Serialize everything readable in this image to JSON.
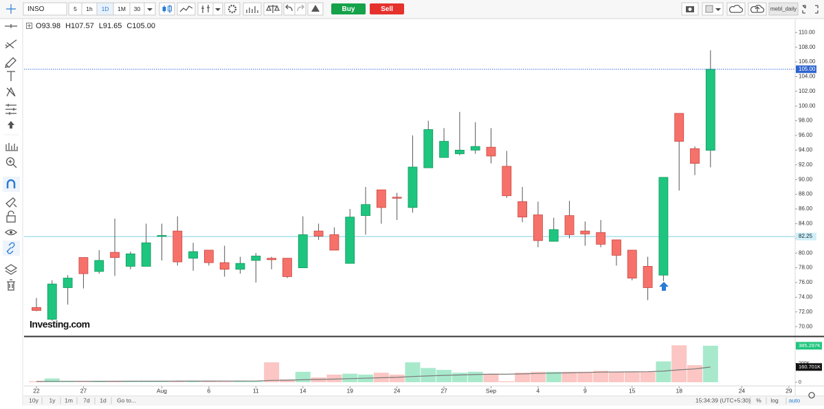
{
  "toolbar": {
    "symbol": "INSO",
    "intervals": [
      "5",
      "1h",
      "1D",
      "1M",
      "30"
    ],
    "active_interval": 2,
    "buy": "Buy",
    "sell": "Sell",
    "layout_name": "mebl_daily"
  },
  "chart_data": [
    {
      "type": "candlestick",
      "legend": {
        "labels": [
          "O",
          "H",
          "L",
          "C"
        ],
        "values": [
          93.98,
          107.57,
          91.65,
          105.0
        ],
        "value_labels": [
          "93.98",
          "107.57",
          "91.65",
          "105.00"
        ]
      },
      "watermark": "Investing.com",
      "categories": [
        "22",
        null,
        null,
        "27",
        null,
        null,
        null,
        null,
        "Aug",
        null,
        null,
        "6",
        null,
        null,
        "11",
        null,
        null,
        "14",
        null,
        null,
        "19",
        null,
        null,
        "24",
        null,
        null,
        "27",
        null,
        null,
        "Sep",
        null,
        null,
        "4",
        null,
        null,
        "9",
        null,
        null,
        "15",
        null,
        null,
        "18",
        null,
        null,
        null,
        "24",
        null,
        null,
        "29"
      ],
      "open": [
        72.6,
        71.0,
        75.3,
        79.4,
        77.5,
        80.1,
        78.2,
        78.2,
        82.3,
        83.0,
        79.3,
        80.4,
        78.7,
        77.8,
        79.0,
        79.3,
        79.3,
        78.0,
        83.0,
        82.5,
        78.6,
        85.1,
        88.6,
        87.6,
        86.2,
        91.6,
        93.0,
        93.5,
        94.0,
        94.4,
        91.8,
        87.0,
        85.2,
        81.6,
        85.1,
        83.0,
        82.8,
        81.8,
        80.4,
        78.2,
        77.0,
        99.0,
        94.2,
        93.98,
        null,
        null,
        null,
        null,
        null
      ],
      "high": [
        73.9,
        76.3,
        77.0,
        79.4,
        80.4,
        84.7,
        80.2,
        84.0,
        84.0,
        85.0,
        81.4,
        80.4,
        81.0,
        79.5,
        80.0,
        79.5,
        79.3,
        85.0,
        84.0,
        83.5,
        86.0,
        89.0,
        88.6,
        88.2,
        96.0,
        98.0,
        97.0,
        99.2,
        97.8,
        97.0,
        93.9,
        89.0,
        87.0,
        84.8,
        87.1,
        84.3,
        84.5,
        81.8,
        80.4,
        79.5,
        90.3,
        99.0,
        94.5,
        107.57,
        null,
        null,
        null,
        null,
        null
      ],
      "low": [
        72.1,
        70.8,
        73.0,
        75.2,
        77.2,
        76.9,
        77.8,
        78.2,
        79.0,
        78.3,
        77.6,
        78.3,
        76.8,
        77.2,
        76.0,
        77.8,
        76.6,
        78.0,
        81.8,
        80.4,
        78.6,
        82.5,
        84.0,
        84.5,
        85.5,
        91.6,
        93.0,
        93.3,
        93.5,
        92.2,
        87.5,
        84.2,
        80.8,
        81.6,
        82.0,
        81.0,
        80.8,
        78.3,
        76.3,
        73.6,
        76.2,
        88.5,
        90.6,
        91.65,
        null,
        null,
        null,
        null,
        null
      ],
      "close": [
        72.2,
        75.8,
        76.6,
        77.2,
        79.0,
        79.4,
        79.9,
        81.4,
        82.4,
        78.8,
        80.2,
        78.7,
        77.8,
        78.6,
        79.6,
        79.1,
        76.8,
        82.5,
        82.3,
        80.4,
        84.9,
        86.6,
        86.2,
        87.5,
        91.7,
        96.8,
        95.2,
        94.0,
        94.5,
        93.2,
        87.8,
        84.9,
        81.7,
        83.2,
        82.5,
        82.6,
        81.2,
        79.7,
        76.6,
        75.3,
        90.3,
        95.2,
        92.2,
        105.0,
        null,
        null,
        null,
        null,
        null
      ],
      "up_color": "#1ec57e",
      "down_color": "#f7716b",
      "wick_color": "#555555",
      "ylim": [
        68.8,
        111.8
      ],
      "yticks": [
        {
          "value": 70,
          "label": "70.00"
        },
        {
          "value": 72,
          "label": "72.00"
        },
        {
          "value": 74,
          "label": "74.00"
        },
        {
          "value": 76,
          "label": "76.00"
        },
        {
          "value": 78,
          "label": "78.00"
        },
        {
          "value": 80,
          "label": "80.00"
        },
        {
          "value": 82,
          "label": "82.00"
        },
        {
          "value": 84,
          "label": "84.00"
        },
        {
          "value": 86,
          "label": "86.00"
        },
        {
          "value": 88,
          "label": "88.00"
        },
        {
          "value": 90,
          "label": "90.00"
        },
        {
          "value": 92,
          "label": "92.00"
        },
        {
          "value": 94,
          "label": "94.00"
        },
        {
          "value": 96,
          "label": "96.00"
        },
        {
          "value": 98,
          "label": "98.00"
        },
        {
          "value": 100,
          "label": "100.00"
        },
        {
          "value": 102,
          "label": "102.00"
        },
        {
          "value": 104,
          "label": "104.00"
        },
        {
          "value": 106,
          "label": "106.00"
        },
        {
          "value": 108,
          "label": "108.00"
        },
        {
          "value": 110,
          "label": "110.00"
        }
      ],
      "last_price": {
        "value": 105,
        "label": "105.00"
      },
      "level_line": 82.25
    },
    {
      "type": "bar",
      "values": [
        10000,
        40000,
        12000,
        10000,
        12000,
        15000,
        10000,
        12000,
        8000,
        12000,
        8000,
        10000,
        8000,
        10000,
        8000,
        210000,
        30000,
        110000,
        50000,
        80000,
        90000,
        80000,
        100000,
        80000,
        210000,
        150000,
        130000,
        100000,
        110000,
        90000,
        10000,
        100000,
        110000,
        110000,
        110000,
        110000,
        120000,
        110000,
        110000,
        110000,
        220000,
        390000,
        180000,
        385297,
        null,
        null,
        null,
        null,
        null
      ],
      "value_labels": [
        null,
        null,
        null,
        null,
        null,
        null,
        null,
        null,
        null,
        null,
        null,
        null,
        null,
        null,
        null,
        null,
        null,
        null,
        null,
        null,
        null,
        null,
        null,
        null,
        null,
        null,
        null,
        null,
        null,
        null,
        null,
        null,
        null,
        null,
        null,
        null,
        null,
        null,
        null,
        null,
        null,
        null,
        null,
        "385.297K",
        null,
        null,
        null,
        null,
        null
      ],
      "ma": [
        8000,
        9000,
        9500,
        9800,
        10000,
        10500,
        10800,
        11000,
        11200,
        11500,
        11800,
        12000,
        12200,
        12400,
        12600,
        20000,
        21000,
        26000,
        29000,
        33000,
        38000,
        42000,
        47000,
        51000,
        60000,
        66000,
        72000,
        76000,
        81000,
        85000,
        84000,
        88000,
        92000,
        96000,
        99000,
        103000,
        107000,
        108000,
        110000,
        111000,
        117000,
        131000,
        140000,
        160701,
        null,
        null,
        null,
        null,
        null
      ],
      "ma_value_labels": [
        null,
        null,
        null,
        null,
        null,
        null,
        null,
        null,
        null,
        null,
        null,
        null,
        null,
        null,
        null,
        null,
        null,
        null,
        null,
        null,
        null,
        null,
        null,
        null,
        null,
        null,
        null,
        null,
        null,
        null,
        null,
        null,
        null,
        null,
        null,
        null,
        null,
        null,
        null,
        null,
        null,
        null,
        null,
        "160.701K",
        null,
        null,
        null,
        null,
        null
      ],
      "up_color": "#a8e9cc",
      "down_color": "#fbc6c3",
      "ma_color": "#7a7a7a",
      "ylim": [
        -29000,
        465000
      ],
      "yticks": [
        0,
        {
          "value": 200000,
          "label": "200K"
        }
      ]
    }
  ],
  "bottom_bar": {
    "ranges": [
      "10y",
      "1y",
      "1m",
      "7d",
      "1d",
      "Go to..."
    ],
    "time": "15:34:39 (UTC+5:30)",
    "options": [
      "%",
      "log",
      "auto"
    ]
  }
}
